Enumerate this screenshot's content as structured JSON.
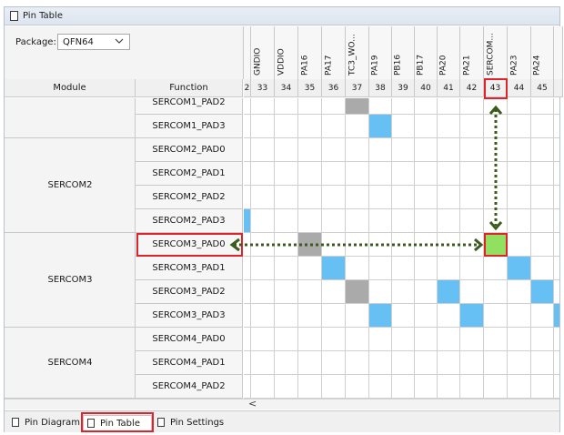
{
  "window": {
    "title": "Pin Table"
  },
  "package": {
    "label": "Package:",
    "value": "QFN64"
  },
  "columns": [
    {
      "name": "",
      "num": "2"
    },
    {
      "name": "GNDIO",
      "num": "33"
    },
    {
      "name": "VDDIO",
      "num": "34"
    },
    {
      "name": "PA16",
      "num": "35"
    },
    {
      "name": "PA17",
      "num": "36"
    },
    {
      "name": "TC3_WO...",
      "num": "37"
    },
    {
      "name": "PA19",
      "num": "38"
    },
    {
      "name": "PB16",
      "num": "39"
    },
    {
      "name": "PB17",
      "num": "40"
    },
    {
      "name": "PA20",
      "num": "41"
    },
    {
      "name": "PA21",
      "num": "42"
    },
    {
      "name": "SERCOM...",
      "num": "43"
    },
    {
      "name": "PA23",
      "num": "44"
    },
    {
      "name": "PA24",
      "num": "45"
    },
    {
      "name": "",
      "num": ""
    }
  ],
  "table_header": {
    "module": "Module",
    "function": "Function"
  },
  "modules": [
    {
      "label": "SERCOM1",
      "rows": 2
    },
    {
      "label": "SERCOM2",
      "rows": 4
    },
    {
      "label": "SERCOM3",
      "rows": 4
    },
    {
      "label": "SERCOM4",
      "rows": 3
    }
  ],
  "rows": [
    {
      "function": "SERCOM1_PAD2",
      "cells": {
        "5": "gray"
      }
    },
    {
      "function": "SERCOM1_PAD3",
      "cells": {
        "6": "blue"
      }
    },
    {
      "function": "SERCOM2_PAD0",
      "cells": {}
    },
    {
      "function": "SERCOM2_PAD1",
      "cells": {}
    },
    {
      "function": "SERCOM2_PAD2",
      "cells": {}
    },
    {
      "function": "SERCOM2_PAD3",
      "cells": {
        "0": "blue"
      }
    },
    {
      "function": "SERCOM3_PAD0",
      "cells": {
        "3": "gray",
        "11": "green"
      }
    },
    {
      "function": "SERCOM3_PAD1",
      "cells": {
        "4": "blue",
        "12": "blue"
      }
    },
    {
      "function": "SERCOM3_PAD2",
      "cells": {
        "5": "gray",
        "9": "blue",
        "13": "blue"
      }
    },
    {
      "function": "SERCOM3_PAD3",
      "cells": {
        "6": "blue",
        "10": "blue",
        "14": "blue"
      }
    },
    {
      "function": "SERCOM4_PAD0",
      "cells": {}
    },
    {
      "function": "SERCOM4_PAD1",
      "cells": {}
    },
    {
      "function": "SERCOM4_PAD2",
      "cells": {}
    }
  ],
  "highlight": {
    "row": 6,
    "col": 11,
    "color": "#e0222a",
    "arrow_color": "#3d5a1f"
  },
  "tabs": [
    {
      "label": "Pin Diagram",
      "active": false
    },
    {
      "label": "Pin Table",
      "active": true
    },
    {
      "label": "Pin Settings",
      "active": false
    }
  ],
  "scroll": {
    "left_arrow": "<"
  }
}
